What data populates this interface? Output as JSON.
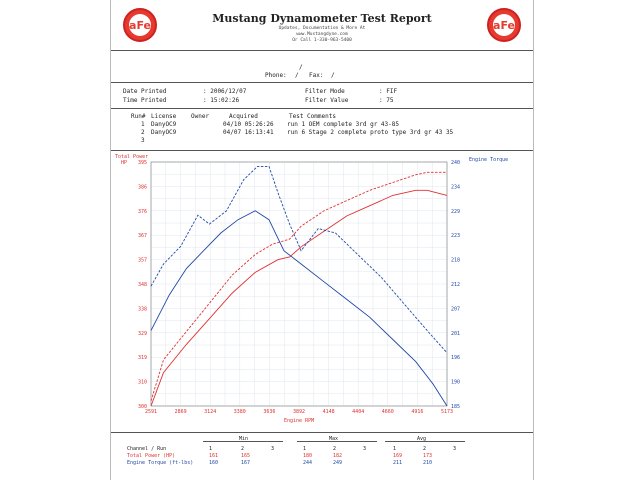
{
  "header": {
    "title": "Mustang Dynamometer Test Report",
    "sub1": "Updates, Documentation & More At",
    "sub2": "www.Mustangdyne.com",
    "sub3": "Or Call 1-330-963-5400",
    "logo_text": "aFe",
    "logo_color": "#e63a2e"
  },
  "info": {
    "slash": "/",
    "phone_label": "Phone:",
    "fax_label": "Fax:",
    "date_label": "Date Printed",
    "date_value": ": 2006/12/07",
    "time_label": "Time Printed",
    "time_value": ": 15:02:26",
    "filter_mode_label": "Filter Mode",
    "filter_mode_value": ": FIF",
    "filter_value_label": "Filter Value",
    "filter_value_value": ": 75"
  },
  "runs": {
    "headers": [
      "Run#",
      "License",
      "Owner",
      "Acquired",
      "Test Comments"
    ],
    "rows": [
      {
        "num": "1",
        "license": "DanyOC9",
        "acquired": "04/10 05:26:26",
        "comment": "run 1 OEM complete 3rd gr 43-85"
      },
      {
        "num": "2",
        "license": "DanyOC9",
        "acquired": "04/07 16:13:41",
        "comment": "run 6 Stage 2 complete proto type 3rd gr 43 35"
      },
      {
        "num": "3",
        "license": "",
        "acquired": "",
        "comment": ""
      }
    ]
  },
  "chart_data": {
    "type": "line",
    "xlabel": "Engine RPM",
    "y_left_label": "Total Power",
    "y_left_unit": "HP",
    "y_right_label": "Engine Torque",
    "x_ticks": [
      "2591",
      "2869",
      "3124",
      "3380",
      "3636",
      "3892",
      "4148",
      "4404",
      "4660",
      "4916",
      "5173"
    ],
    "y_left_ticks": [
      "300",
      "310",
      "319",
      "329",
      "338",
      "348",
      "357",
      "367",
      "376",
      "386",
      "395"
    ],
    "y_right_ticks": [
      "185",
      "190",
      "196",
      "201",
      "207",
      "212",
      "218",
      "223",
      "229",
      "234",
      "240"
    ],
    "xlim": [
      2591,
      5173
    ],
    "ylim_left": [
      300,
      395
    ],
    "ylim_right": [
      185,
      240
    ],
    "series": [
      {
        "run": 1,
        "measure": "power",
        "axis": "left",
        "color": "#e03030",
        "dash": false,
        "x": [
          2591,
          2700,
          2900,
          3100,
          3300,
          3500,
          3700,
          3800,
          3900,
          4100,
          4300,
          4500,
          4700,
          4900,
          5000,
          5173
        ],
        "y": [
          300,
          313,
          324,
          334,
          344,
          352,
          357,
          358,
          362,
          368,
          374,
          378,
          382,
          384,
          384,
          382
        ]
      },
      {
        "run": 2,
        "measure": "power",
        "axis": "left",
        "color": "#e03030",
        "dash": true,
        "x": [
          2591,
          2700,
          2900,
          3100,
          3300,
          3500,
          3650,
          3800,
          3900,
          4100,
          4300,
          4500,
          4700,
          4900,
          5000,
          5173
        ],
        "y": [
          302,
          318,
          329,
          340,
          351,
          359,
          363,
          365,
          370,
          376,
          380,
          384,
          387,
          390,
          391,
          391
        ]
      },
      {
        "run": 1,
        "measure": "torque",
        "axis": "right",
        "color": "#2048a8",
        "dash": false,
        "x": [
          2591,
          2750,
          2900,
          3050,
          3200,
          3350,
          3500,
          3620,
          3750,
          3900,
          4100,
          4300,
          4500,
          4700,
          4900,
          5050,
          5173
        ],
        "y": [
          202,
          210,
          216,
          220,
          224,
          227,
          229,
          227,
          220,
          217,
          213,
          209,
          205,
          200,
          195,
          190,
          185
        ]
      },
      {
        "run": 2,
        "measure": "torque",
        "axis": "right",
        "color": "#2048a8",
        "dash": true,
        "x": [
          2591,
          2700,
          2850,
          3000,
          3100,
          3250,
          3400,
          3520,
          3620,
          3700,
          3800,
          3900,
          4050,
          4200,
          4400,
          4600,
          4800,
          5000,
          5173
        ],
        "y": [
          212,
          217,
          221,
          228,
          226,
          229,
          236,
          239,
          239,
          233,
          226,
          220,
          225,
          224,
          219,
          214,
          208,
          202,
          197
        ]
      }
    ]
  },
  "table": {
    "group_labels": [
      "Min",
      "Max",
      "Avg"
    ],
    "row_labels": [
      "Channel / Run",
      "Total Power (HP)",
      "Engine Torque (ft-lbs)"
    ],
    "run_cols": [
      "1",
      "2",
      "3",
      "1",
      "2",
      "3",
      "1",
      "2",
      "3"
    ],
    "power_values": [
      "161",
      "165",
      "",
      "180",
      "182",
      "",
      "169",
      "173",
      ""
    ],
    "torque_values": [
      "160",
      "167",
      "",
      "244",
      "249",
      "",
      "211",
      "210",
      ""
    ]
  }
}
